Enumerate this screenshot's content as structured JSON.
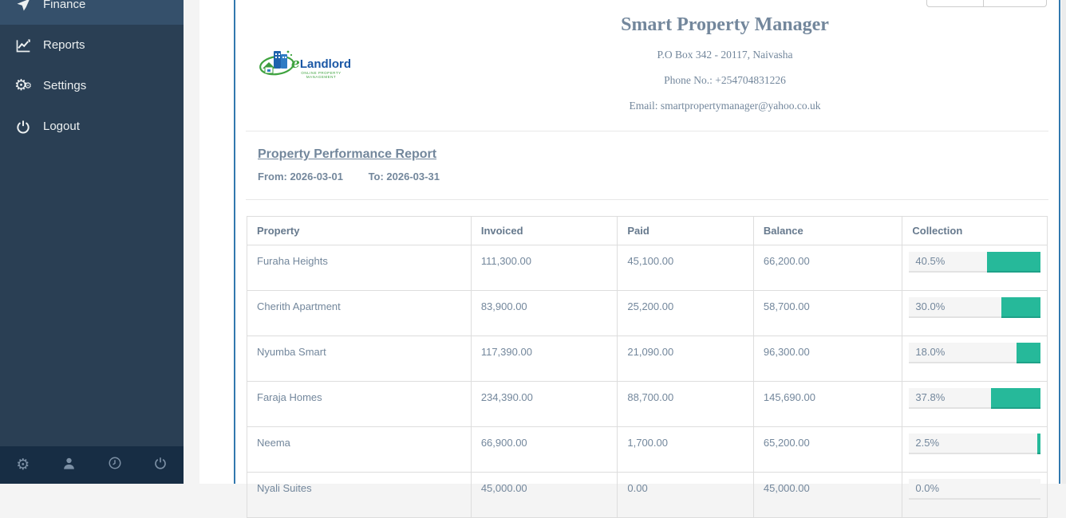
{
  "sidebar": {
    "menu": [
      {
        "label": "Finance",
        "icon": "paper-plane-icon"
      },
      {
        "label": "Reports",
        "icon": "chart-line-icon"
      },
      {
        "label": "Settings",
        "icon": "gears-icon"
      },
      {
        "label": "Logout",
        "icon": "power-icon"
      }
    ],
    "footer_icons": [
      "gear-icon",
      "user-icon",
      "clock-icon",
      "power-icon"
    ]
  },
  "logo": {
    "brand_e": "e",
    "brand_rest": "Landlord",
    "tagline": "ONLINE PROPERTY MANAGEMENT"
  },
  "company": {
    "name": "Smart Property Manager",
    "address": "P.O Box 342 - 20117, Naivasha",
    "phone": "Phone No.: +254704831226",
    "email": "Email: smartpropertymanager@yahoo.co.uk"
  },
  "report": {
    "title": "Property Performance Report",
    "from_text": "From: 2026-03-01",
    "to_text": "To: 2026-03-31"
  },
  "table": {
    "headers": [
      "Property",
      "Invoiced",
      "Paid",
      "Balance",
      "Collection"
    ],
    "rows": [
      {
        "property": "Furaha Heights",
        "invoiced": "111,300.00",
        "paid": "45,100.00",
        "balance": "66,200.00",
        "collection_pct": 40.5,
        "collection_label": "40.5%"
      },
      {
        "property": "Cherith Apartment",
        "invoiced": "83,900.00",
        "paid": "25,200.00",
        "balance": "58,700.00",
        "collection_pct": 30.0,
        "collection_label": "30.0%"
      },
      {
        "property": "Nyumba Smart",
        "invoiced": "117,390.00",
        "paid": "21,090.00",
        "balance": "96,300.00",
        "collection_pct": 18.0,
        "collection_label": "18.0%"
      },
      {
        "property": "Faraja Homes",
        "invoiced": "234,390.00",
        "paid": "88,700.00",
        "balance": "145,690.00",
        "collection_pct": 37.8,
        "collection_label": "37.8%"
      },
      {
        "property": "Neema",
        "invoiced": "66,900.00",
        "paid": "1,700.00",
        "balance": "65,200.00",
        "collection_pct": 2.5,
        "collection_label": "2.5%"
      },
      {
        "property": "Nyali Suites",
        "invoiced": "45,000.00",
        "paid": "0.00",
        "balance": "45,000.00",
        "collection_pct": 0.0,
        "collection_label": "0.0%"
      }
    ]
  },
  "colors": {
    "sidebar_bg": "#2A3F54",
    "sidebar_footer_bg": "#172D44",
    "accent_green": "#26B99A",
    "frame_border_blue": "#3278AE",
    "text_slate": "#73879C"
  }
}
